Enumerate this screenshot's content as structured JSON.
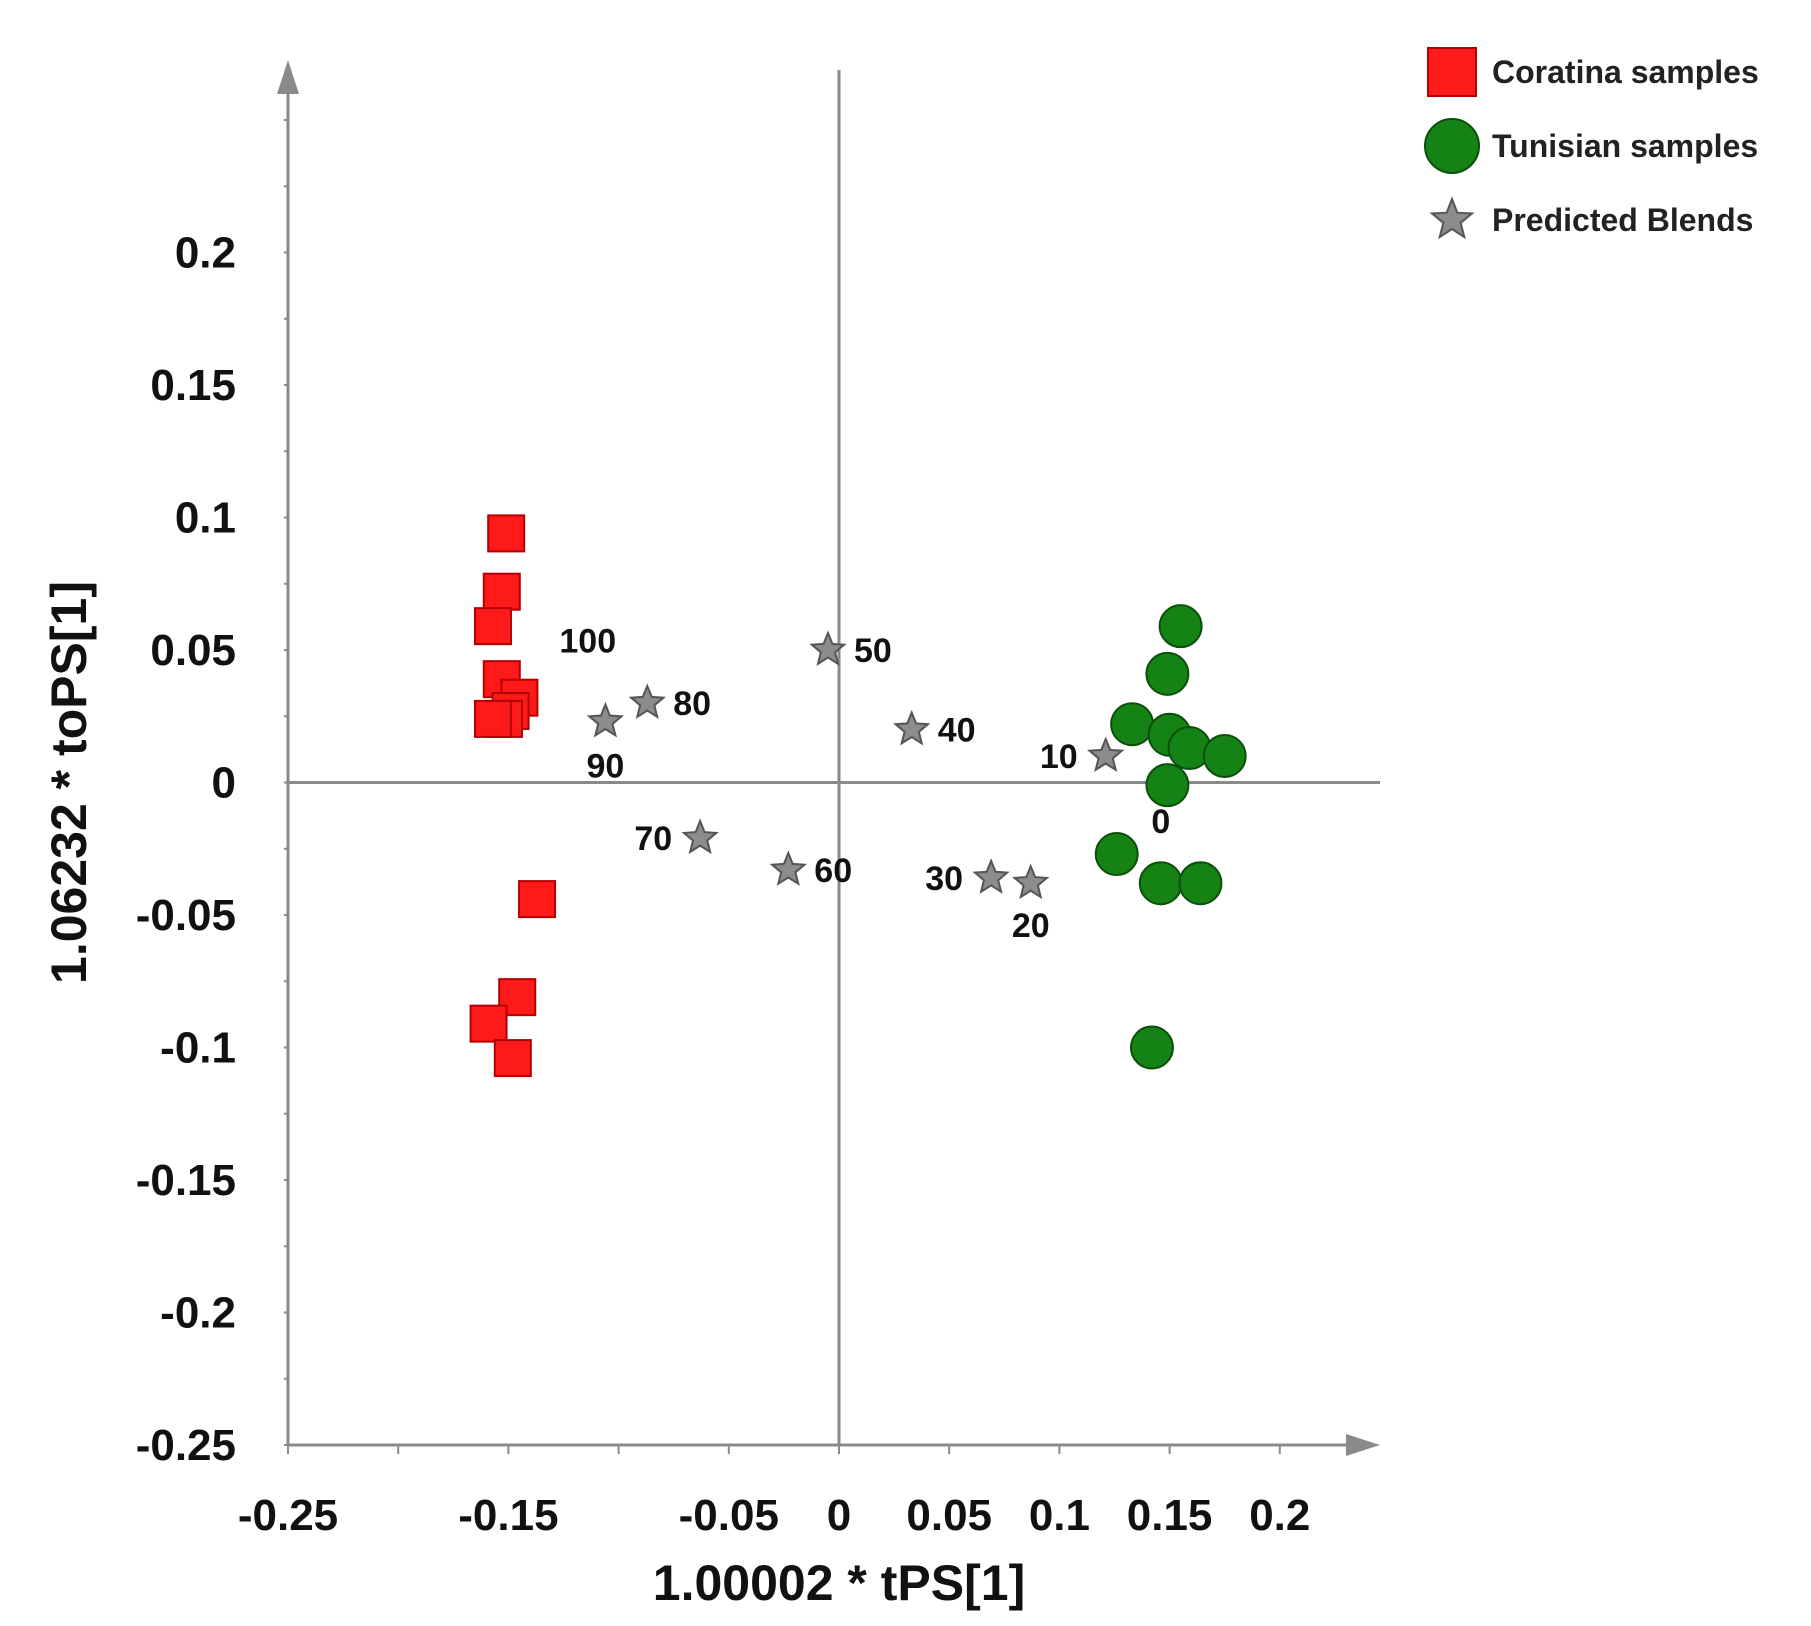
{
  "chart_data": {
    "type": "scatter",
    "xlabel": "1.00002 * tPS[1]",
    "ylabel": "1.06232 * toPS[1]",
    "xlim": [
      -0.25,
      0.25
    ],
    "ylim": [
      -0.25,
      0.25
    ],
    "x_ticks": [
      {
        "value": -0.25,
        "label": "-0.25"
      },
      {
        "value": -0.15,
        "label": "-0.15"
      },
      {
        "value": -0.05,
        "label": "-0.05"
      },
      {
        "value": 0,
        "label": "0"
      },
      {
        "value": 0.05,
        "label": "0.05"
      },
      {
        "value": 0.1,
        "label": "0.1"
      },
      {
        "value": 0.15,
        "label": "0.15"
      },
      {
        "value": 0.2,
        "label": "0.2"
      }
    ],
    "y_ticks": [
      {
        "value": 0.2,
        "label": "0.2"
      },
      {
        "value": 0.15,
        "label": "0.15"
      },
      {
        "value": 0.1,
        "label": "0.1"
      },
      {
        "value": 0.05,
        "label": "0.05"
      },
      {
        "value": 0,
        "label": "0"
      },
      {
        "value": -0.05,
        "label": "-0.05"
      },
      {
        "value": -0.1,
        "label": "-0.1"
      },
      {
        "value": -0.15,
        "label": "-0.15"
      },
      {
        "value": -0.2,
        "label": "-0.2"
      },
      {
        "value": -0.25,
        "label": "-0.25"
      }
    ],
    "legend_position": "top-right",
    "series": [
      {
        "name": "Coratina samples",
        "marker": "square",
        "color": "#ff1a1a",
        "stroke": "#b30000",
        "points": [
          {
            "x": -0.151,
            "y": 0.094
          },
          {
            "x": -0.153,
            "y": 0.072
          },
          {
            "x": -0.157,
            "y": 0.059
          },
          {
            "x": -0.153,
            "y": 0.039
          },
          {
            "x": -0.145,
            "y": 0.032
          },
          {
            "x": -0.149,
            "y": 0.027
          },
          {
            "x": -0.152,
            "y": 0.024
          },
          {
            "x": -0.157,
            "y": 0.024
          },
          {
            "x": -0.137,
            "y": -0.044
          },
          {
            "x": -0.146,
            "y": -0.081
          },
          {
            "x": -0.159,
            "y": -0.091
          },
          {
            "x": -0.148,
            "y": -0.104
          }
        ]
      },
      {
        "name": "Tunisian samples",
        "marker": "circle",
        "color": "#158215",
        "stroke": "#0b4f0b",
        "points": [
          {
            "x": 0.155,
            "y": 0.059
          },
          {
            "x": 0.149,
            "y": 0.041
          },
          {
            "x": 0.133,
            "y": 0.022
          },
          {
            "x": 0.15,
            "y": 0.018
          },
          {
            "x": 0.159,
            "y": 0.013
          },
          {
            "x": 0.175,
            "y": 0.01
          },
          {
            "x": 0.149,
            "y": -0.001
          },
          {
            "x": 0.126,
            "y": -0.027
          },
          {
            "x": 0.146,
            "y": -0.038
          },
          {
            "x": 0.164,
            "y": -0.038
          },
          {
            "x": 0.142,
            "y": -0.1
          }
        ]
      },
      {
        "name": "Predicted Blends",
        "marker": "star",
        "color": "#8c8c8c",
        "stroke": "#555555",
        "points": [
          {
            "x": 0.121,
            "y": 0.01,
            "label": "10"
          },
          {
            "x": 0.087,
            "y": -0.038,
            "label": "20"
          },
          {
            "x": 0.069,
            "y": -0.036,
            "label": "30"
          },
          {
            "x": 0.033,
            "y": 0.02,
            "label": "40"
          },
          {
            "x": -0.005,
            "y": 0.05,
            "label": "50"
          },
          {
            "x": -0.023,
            "y": -0.033,
            "label": "60"
          },
          {
            "x": -0.063,
            "y": -0.021,
            "label": "70"
          },
          {
            "x": -0.087,
            "y": 0.03,
            "label": "80"
          },
          {
            "x": -0.106,
            "y": 0.023,
            "label": "90"
          }
        ]
      }
    ],
    "annotations": [
      {
        "text": "100",
        "x": -0.114,
        "y": 0.049
      },
      {
        "text": "0",
        "x": 0.146,
        "y": -0.019
      }
    ]
  }
}
